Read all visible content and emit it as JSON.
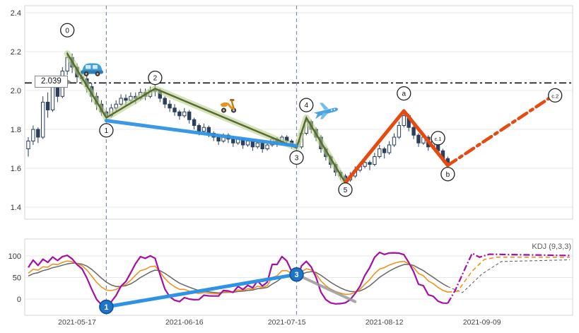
{
  "chart_data": {
    "type": "candlestick",
    "title": "",
    "xticks": [
      {
        "label": "2021-05-17",
        "i": 10
      },
      {
        "label": "2021-06-16",
        "i": 32
      },
      {
        "label": "2021-07-15",
        "i": 53
      },
      {
        "label": "2021-08-12",
        "i": 73
      },
      {
        "label": "2021-09-09",
        "i": 93
      }
    ],
    "vlines": [
      {
        "i": 16
      },
      {
        "i": 55
      }
    ],
    "price": {
      "ylim": [
        1.35,
        2.44
      ],
      "yticks": [
        {
          "v": 2.4,
          "label": "2.4"
        },
        {
          "v": 2.2,
          "label": "2.2"
        },
        {
          "v": 2.0,
          "label": "2.0"
        },
        {
          "v": 1.8,
          "label": "1.8"
        },
        {
          "v": 1.6,
          "label": "1.6"
        },
        {
          "v": 1.4,
          "label": "1.4"
        }
      ],
      "hline": {
        "value": 2.039,
        "label": "2.039",
        "color": "#111111"
      },
      "candle_color": "#2a3f5e",
      "waves": {
        "impulse": {
          "color": "#566b2e",
          "halo_color": "#b9cf8e",
          "points": [
            [
              8,
              2.19
            ],
            [
              16,
              1.86
            ],
            [
              26,
              2.01
            ],
            [
              55,
              1.705
            ],
            [
              57,
              1.86
            ],
            [
              65,
              1.525
            ]
          ]
        },
        "abc": {
          "color": "#e8490f",
          "solid": [
            [
              65,
              1.525
            ],
            [
              77,
              1.895
            ],
            [
              86,
              1.615
            ]
          ],
          "forecast": [
            [
              86,
              1.615
            ],
            [
              108,
              1.98
            ]
          ]
        }
      },
      "trendline": {
        "color": "#2e93e6",
        "points": [
          [
            16,
            1.845
          ],
          [
            55,
            1.715
          ]
        ]
      },
      "labels": [
        {
          "text": "0",
          "i": 8,
          "p": 2.31
        },
        {
          "text": "1",
          "i": 16,
          "p": 1.795
        },
        {
          "text": "2",
          "i": 26,
          "p": 2.065
        },
        {
          "text": "3",
          "i": 55,
          "p": 1.655
        },
        {
          "text": "4",
          "i": 57,
          "p": 1.925
        },
        {
          "text": "5",
          "i": 65,
          "p": 1.49
        },
        {
          "text": "a",
          "i": 77,
          "p": 1.985
        },
        {
          "text": "b",
          "i": 86,
          "p": 1.57
        },
        {
          "text": "c.1",
          "i": 84,
          "p": 1.755
        },
        {
          "text": "c.2",
          "i": 108,
          "p": 1.975
        }
      ],
      "icons": [
        {
          "name": "car-icon",
          "i": 13,
          "p": 2.1
        },
        {
          "name": "scooter-icon",
          "i": 41,
          "p": 1.915
        },
        {
          "name": "airplane-icon",
          "i": 61,
          "p": 1.885
        }
      ],
      "candles": [
        [
          "2021-05-03",
          1.7,
          1.76,
          1.66,
          1.74
        ],
        [
          "2021-05-04",
          1.74,
          1.82,
          1.72,
          1.8
        ],
        [
          "2021-05-05",
          1.8,
          1.81,
          1.73,
          1.76
        ],
        [
          "2021-05-06",
          1.76,
          1.97,
          1.75,
          1.94
        ],
        [
          "2021-05-07",
          1.94,
          1.99,
          1.86,
          1.9
        ],
        [
          "2021-05-10",
          1.9,
          2.05,
          1.89,
          2.03
        ],
        [
          "2021-05-11",
          2.03,
          2.06,
          1.94,
          1.97
        ],
        [
          "2021-05-12",
          1.97,
          2.12,
          1.96,
          2.1
        ],
        [
          "2021-05-13",
          2.1,
          2.2,
          2.08,
          2.17
        ],
        [
          "2021-05-14",
          2.17,
          2.19,
          2.09,
          2.12
        ],
        [
          "2021-05-17",
          2.12,
          2.14,
          2.04,
          2.07
        ],
        [
          "2021-05-18",
          2.07,
          2.1,
          2.03,
          2.06
        ],
        [
          "2021-05-19",
          2.06,
          2.08,
          1.99,
          2.02
        ],
        [
          "2021-05-20",
          2.02,
          2.04,
          1.94,
          1.97
        ],
        [
          "2021-05-21",
          1.97,
          1.99,
          1.9,
          1.93
        ],
        [
          "2021-05-24",
          1.93,
          1.95,
          1.87,
          1.89
        ],
        [
          "2021-05-25",
          1.89,
          1.9,
          1.85,
          1.87
        ],
        [
          "2021-05-26",
          1.87,
          1.93,
          1.86,
          1.91
        ],
        [
          "2021-05-27",
          1.91,
          1.95,
          1.89,
          1.93
        ],
        [
          "2021-05-28",
          1.93,
          1.98,
          1.92,
          1.96
        ],
        [
          "2021-05-31",
          1.96,
          1.98,
          1.92,
          1.95
        ],
        [
          "2021-06-01",
          1.95,
          1.99,
          1.94,
          1.97
        ],
        [
          "2021-06-02",
          1.97,
          1.99,
          1.93,
          1.96
        ],
        [
          "2021-06-03",
          1.96,
          2.01,
          1.95,
          1.99
        ],
        [
          "2021-06-04",
          1.99,
          2.01,
          1.95,
          1.97
        ],
        [
          "2021-06-07",
          1.97,
          2.02,
          1.96,
          2.0
        ],
        [
          "2021-06-08",
          2.0,
          2.03,
          1.97,
          2.0
        ],
        [
          "2021-06-09",
          2.0,
          2.01,
          1.94,
          1.96
        ],
        [
          "2021-06-10",
          1.96,
          1.97,
          1.91,
          1.93
        ],
        [
          "2021-06-11",
          1.93,
          1.95,
          1.89,
          1.91
        ],
        [
          "2021-06-14",
          1.91,
          1.93,
          1.87,
          1.89
        ],
        [
          "2021-06-15",
          1.89,
          1.9,
          1.85,
          1.87
        ],
        [
          "2021-06-16",
          1.87,
          1.91,
          1.86,
          1.89
        ],
        [
          "2021-06-17",
          1.89,
          1.9,
          1.83,
          1.85
        ],
        [
          "2021-06-18",
          1.85,
          1.86,
          1.8,
          1.82
        ],
        [
          "2021-06-21",
          1.82,
          1.83,
          1.77,
          1.79
        ],
        [
          "2021-06-22",
          1.79,
          1.83,
          1.78,
          1.81
        ],
        [
          "2021-06-23",
          1.81,
          1.82,
          1.76,
          1.78
        ],
        [
          "2021-06-24",
          1.78,
          1.79,
          1.74,
          1.76
        ],
        [
          "2021-06-25",
          1.76,
          1.77,
          1.72,
          1.74
        ],
        [
          "2021-06-28",
          1.74,
          1.78,
          1.73,
          1.77
        ],
        [
          "2021-06-29",
          1.77,
          1.78,
          1.73,
          1.75
        ],
        [
          "2021-06-30",
          1.75,
          1.76,
          1.71,
          1.73
        ],
        [
          "2021-07-01",
          1.73,
          1.76,
          1.72,
          1.75
        ],
        [
          "2021-07-02",
          1.75,
          1.76,
          1.7,
          1.72
        ],
        [
          "2021-07-05",
          1.72,
          1.75,
          1.71,
          1.74
        ],
        [
          "2021-07-06",
          1.74,
          1.75,
          1.69,
          1.71
        ],
        [
          "2021-07-07",
          1.71,
          1.74,
          1.7,
          1.73
        ],
        [
          "2021-07-08",
          1.73,
          1.74,
          1.68,
          1.7
        ],
        [
          "2021-07-09",
          1.7,
          1.73,
          1.69,
          1.72
        ],
        [
          "2021-07-12",
          1.72,
          1.76,
          1.71,
          1.75
        ],
        [
          "2021-07-13",
          1.75,
          1.76,
          1.71,
          1.73
        ],
        [
          "2021-07-14",
          1.73,
          1.77,
          1.72,
          1.76
        ],
        [
          "2021-07-15",
          1.76,
          1.77,
          1.72,
          1.74
        ],
        [
          "2021-07-16",
          1.74,
          1.75,
          1.7,
          1.72
        ],
        [
          "2021-07-19",
          1.72,
          1.73,
          1.69,
          1.71
        ],
        [
          "2021-07-20",
          1.71,
          1.79,
          1.7,
          1.78
        ],
        [
          "2021-07-21",
          1.78,
          1.87,
          1.77,
          1.84
        ],
        [
          "2021-07-22",
          1.84,
          1.85,
          1.78,
          1.8
        ],
        [
          "2021-07-23",
          1.8,
          1.81,
          1.74,
          1.76
        ],
        [
          "2021-07-26",
          1.76,
          1.77,
          1.68,
          1.7
        ],
        [
          "2021-07-27",
          1.7,
          1.71,
          1.64,
          1.66
        ],
        [
          "2021-07-28",
          1.66,
          1.67,
          1.6,
          1.62
        ],
        [
          "2021-07-29",
          1.62,
          1.63,
          1.56,
          1.58
        ],
        [
          "2021-07-30",
          1.58,
          1.59,
          1.54,
          1.56
        ],
        [
          "2021-08-02",
          1.56,
          1.57,
          1.52,
          1.54
        ],
        [
          "2021-08-03",
          1.54,
          1.58,
          1.53,
          1.56
        ],
        [
          "2021-08-04",
          1.56,
          1.61,
          1.55,
          1.59
        ],
        [
          "2021-08-05",
          1.59,
          1.63,
          1.58,
          1.61
        ],
        [
          "2021-08-06",
          1.61,
          1.65,
          1.6,
          1.63
        ],
        [
          "2021-08-09",
          1.63,
          1.64,
          1.59,
          1.62
        ],
        [
          "2021-08-10",
          1.62,
          1.68,
          1.61,
          1.66
        ],
        [
          "2021-08-11",
          1.66,
          1.72,
          1.65,
          1.7
        ],
        [
          "2021-08-12",
          1.7,
          1.71,
          1.65,
          1.68
        ],
        [
          "2021-08-13",
          1.68,
          1.74,
          1.67,
          1.72
        ],
        [
          "2021-08-16",
          1.72,
          1.78,
          1.71,
          1.76
        ],
        [
          "2021-08-17",
          1.76,
          1.84,
          1.75,
          1.82
        ],
        [
          "2021-08-18",
          1.82,
          1.9,
          1.81,
          1.87
        ],
        [
          "2021-08-19",
          1.87,
          1.88,
          1.79,
          1.81
        ],
        [
          "2021-08-20",
          1.81,
          1.82,
          1.75,
          1.77
        ],
        [
          "2021-08-23",
          1.77,
          1.78,
          1.71,
          1.73
        ],
        [
          "2021-08-24",
          1.73,
          1.78,
          1.72,
          1.76
        ],
        [
          "2021-08-25",
          1.76,
          1.77,
          1.69,
          1.71
        ],
        [
          "2021-08-26",
          1.71,
          1.76,
          1.7,
          1.74
        ],
        [
          "2021-08-27",
          1.74,
          1.75,
          1.67,
          1.69
        ],
        [
          "2021-08-30",
          1.69,
          1.7,
          1.63,
          1.65
        ],
        [
          "2021-08-31",
          1.65,
          1.66,
          1.61,
          1.63
        ]
      ]
    },
    "kdj": {
      "label": "KDJ (9,3,3)",
      "params": [
        9,
        3,
        3
      ],
      "ylim": [
        -30,
        140
      ],
      "yticks": [
        {
          "v": 100,
          "label": "100"
        },
        {
          "v": 50,
          "label": "50"
        },
        {
          "v": 0,
          "label": "0"
        }
      ],
      "colors": {
        "k": "#f0921e",
        "d": "#666666",
        "j": "#a410a5"
      },
      "trendline": {
        "color": "#2e93e6",
        "points": [
          [
            16,
            -18
          ],
          [
            55,
            57
          ]
        ],
        "markers": [
          {
            "text": "1",
            "i": 16,
            "v": -18
          },
          {
            "text": "3",
            "i": 55,
            "v": 57
          }
        ]
      },
      "gray_line": {
        "color": "#9a9a9a",
        "points": [
          [
            55,
            57
          ],
          [
            67,
            -6
          ]
        ]
      },
      "forecast": {
        "j": [
          [
            87.5,
            20
          ],
          [
            89.5,
            70
          ],
          [
            91,
            106
          ],
          [
            92.5,
            97
          ],
          [
            94.5,
            104
          ],
          [
            111,
            101
          ]
        ],
        "k": [
          [
            88,
            18
          ],
          [
            91,
            65
          ],
          [
            93.5,
            92
          ],
          [
            96,
            97
          ],
          [
            111,
            97
          ]
        ],
        "d": [
          [
            89,
            15
          ],
          [
            93,
            58
          ],
          [
            97,
            87
          ],
          [
            111,
            91
          ]
        ]
      }
    }
  }
}
